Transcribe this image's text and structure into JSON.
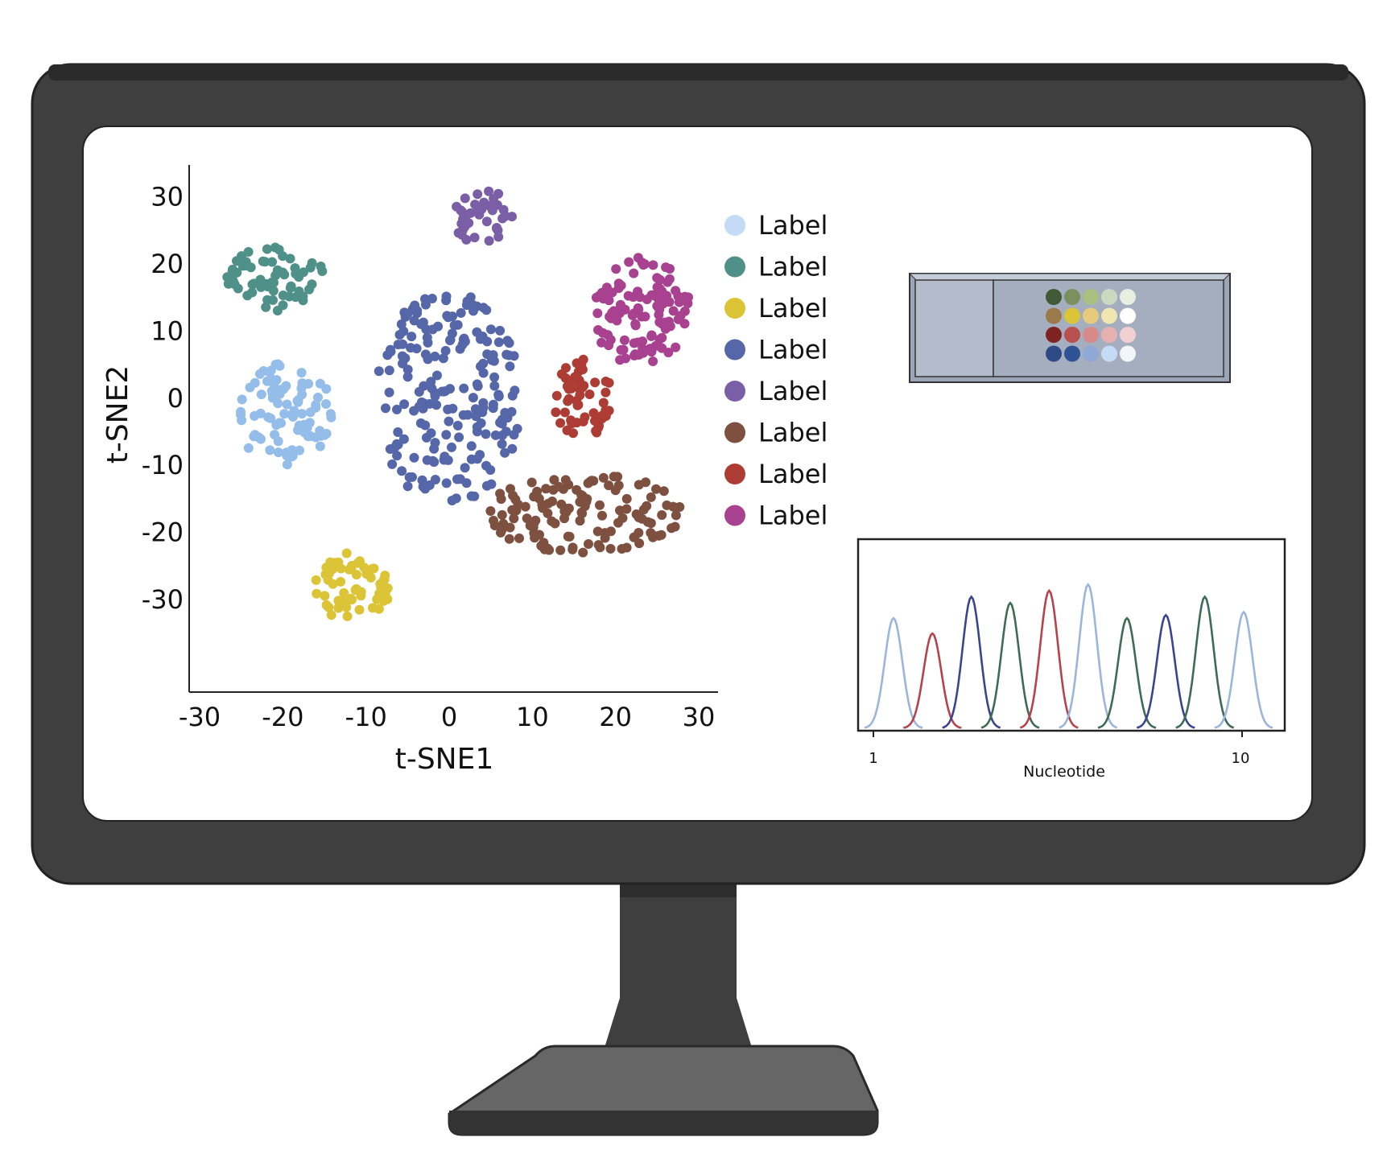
{
  "monitor": {
    "bezel_color": "#3f3f3f",
    "screen_color": "#ffffff",
    "base_color": "#666666",
    "neck_color": "#3f3f3f"
  },
  "tsne": {
    "title": "",
    "xlabel": "t-SNE1",
    "ylabel": "t-SNE2",
    "x_ticks": [
      "-30",
      "-20",
      "-10",
      "0",
      "10",
      "20",
      "30"
    ],
    "y_ticks": [
      "30",
      "20",
      "10",
      "0",
      "-10",
      "-20",
      "-30"
    ],
    "xlim": [
      -30,
      30
    ],
    "ylim": [
      -36,
      32
    ],
    "legend": {
      "placement": "right",
      "items": [
        {
          "label": "Label",
          "color": "#c4daf5"
        },
        {
          "label": "Label",
          "color": "#4f9088"
        },
        {
          "label": "Label",
          "color": "#dcc437"
        },
        {
          "label": "Label",
          "color": "#5567a8"
        },
        {
          "label": "Label",
          "color": "#7a5ea6"
        },
        {
          "label": "Label",
          "color": "#7d5040"
        },
        {
          "label": "Label",
          "color": "#ad3c35"
        },
        {
          "label": "Label",
          "color": "#a8418f"
        }
      ]
    },
    "clusters": [
      {
        "color": "#94bde9",
        "center": [
          -20,
          -2
        ],
        "spread": [
          6,
          8
        ],
        "count": 90
      },
      {
        "color": "#4f9088",
        "center": [
          -21,
          18
        ],
        "spread": [
          6,
          5
        ],
        "count": 65
      },
      {
        "color": "#dcc437",
        "center": [
          -12,
          -28
        ],
        "spread": [
          5,
          5
        ],
        "count": 60
      },
      {
        "color": "#5567a8",
        "center": [
          0,
          0
        ],
        "spread": [
          9,
          16
        ],
        "count": 200
      },
      {
        "color": "#7a5ea6",
        "center": [
          4,
          27
        ],
        "spread": [
          4,
          4
        ],
        "count": 38
      },
      {
        "color": "#7d5040",
        "center": [
          16,
          -17
        ],
        "spread": [
          12,
          6
        ],
        "count": 130
      },
      {
        "color": "#ad3c35",
        "center": [
          16,
          0
        ],
        "spread": [
          3.5,
          6
        ],
        "count": 55
      },
      {
        "color": "#a8418f",
        "center": [
          23,
          13
        ],
        "spread": [
          6,
          8
        ],
        "count": 110
      }
    ]
  },
  "plate": {
    "frame_color": "#9aa6b8",
    "rows": [
      [
        "#3f5a35",
        "#7a9060",
        "#a8c080",
        "#ccd8c0",
        "#e8eee0"
      ],
      [
        "#9a7a48",
        "#dcc437",
        "#e6cc7a",
        "#f0e6b0",
        "#ffffff"
      ],
      [
        "#7e2222",
        "#b85050",
        "#d88a8a",
        "#e6b0b0",
        "#f0d0d0"
      ],
      [
        "#2e4a86",
        "#2f5294",
        "#90a8d6",
        "#c4daf5",
        "#f2f6fb"
      ]
    ]
  },
  "trace": {
    "xlabel": "Nucleotide",
    "x_ticks": [
      "1",
      "10"
    ],
    "peaks": [
      {
        "color": "#9ab6dc",
        "height": 0.72
      },
      {
        "color": "#b8424c",
        "height": 0.62
      },
      {
        "color": "#3a4590",
        "height": 0.86
      },
      {
        "color": "#3e6a58",
        "height": 0.82
      },
      {
        "color": "#b8424c",
        "height": 0.9
      },
      {
        "color": "#9ab6dc",
        "height": 0.94
      },
      {
        "color": "#3e6a58",
        "height": 0.72
      },
      {
        "color": "#3a4590",
        "height": 0.74
      },
      {
        "color": "#3e6a58",
        "height": 0.86
      },
      {
        "color": "#9ab6dc",
        "height": 0.76
      }
    ]
  }
}
